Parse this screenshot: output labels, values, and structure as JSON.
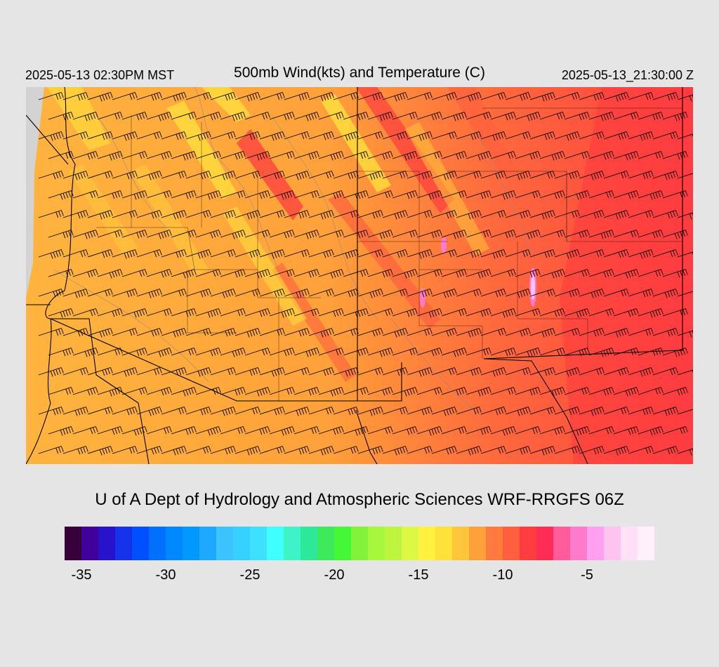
{
  "header": {
    "valid_local": "2025-05-13 02:30PM MST",
    "title": "500mb Wind(kts) and Temperature (C)",
    "valid_utc": "2025-05-13_21:30:00 Z"
  },
  "credit": "U of A Dept of Hydrology and Atmospheric Sciences WRF-RRGFS 06Z",
  "colorbar": {
    "colors": [
      "#38003b",
      "#40009b",
      "#2813cc",
      "#1632ea",
      "#0050ff",
      "#0070ff",
      "#0088ff",
      "#0099ff",
      "#1ea8ff",
      "#3bc2ff",
      "#36d1ff",
      "#3ee0ff",
      "#40ffff",
      "#3ef4c6",
      "#2ee89a",
      "#3cea5a",
      "#44f837",
      "#82f23a",
      "#a6f73d",
      "#bcf43f",
      "#ddf842",
      "#fff13e",
      "#ffe13c",
      "#ffc53b",
      "#ffa13a",
      "#ff7b3d",
      "#ff5f3e",
      "#ff3c40",
      "#ff2c55",
      "#ff5c99",
      "#ff7acb",
      "#ffa0f0",
      "#ffc3ef",
      "#ffe0f6",
      "#fff0fb"
    ],
    "tick_labels": [
      "-35",
      "-30",
      "-25",
      "-20",
      "-15",
      "-10",
      "-5"
    ],
    "tick_values": [
      -35,
      -30,
      -25,
      -20,
      -15,
      -10,
      -5
    ],
    "min": -36,
    "max": -1
  },
  "map": {
    "background": "#d3d3d3",
    "field_base_color": "#ffb13f",
    "barb_color": "#000000",
    "boundary_color": "#000000",
    "contour_color": "#8a8a8a"
  }
}
